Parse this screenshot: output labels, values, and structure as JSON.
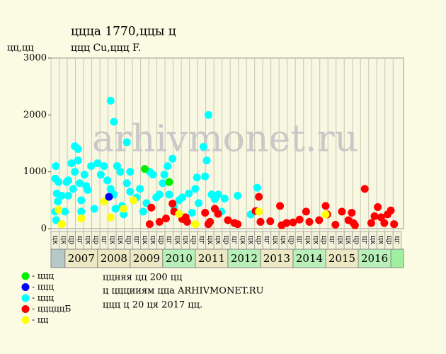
{
  "chart_data": {
    "type": "scatter",
    "title": "ццца 1770,ццы ц",
    "subtitle": "ццц Cu,ццц F.",
    "y_label": "цц,цц",
    "watermark": "arhivmonet.ru",
    "notes": [
      "ццняя цц 200 цц",
      "ц цццииям ццa ARHIVMONET.RU",
      "ццц ц 20 ця 2017 цц."
    ],
    "xlim": [
      2006.57,
      2017.39
    ],
    "ylim": [
      0,
      3000
    ],
    "yticks": [
      0,
      1000,
      2000,
      3000
    ],
    "xticks": [
      2007,
      2008,
      2009,
      2010,
      2011,
      2012,
      2013,
      2014,
      2015,
      2016
    ],
    "year_fill": [
      "#ece8c4",
      "#ece8c4",
      "#ece8c4",
      "#b9efb9",
      "#ece8c4",
      "#b9efb9",
      "#ece8c4",
      "#b9efb9",
      "#ece8c4",
      "#b9efb9"
    ],
    "lead_fill": "#b6c8c8",
    "tail_fill": "#9ef09e",
    "quarter_labels": [
      "цк",
      "цк",
      "цр",
      "цг",
      "цк",
      "цр",
      "цг",
      "цк",
      "цк",
      "цр",
      "цг",
      "цк",
      "цк",
      "цр",
      "цг",
      "цк",
      "цк",
      "цр",
      "цг",
      "цк",
      "цк",
      "цр",
      "цг",
      "цк",
      "цк",
      "цр",
      "цг",
      "цк",
      "цк",
      "цр",
      "цг",
      "цк",
      "цк",
      "цр",
      "цг",
      "цк",
      "цк",
      "цр",
      "цг",
      "цк",
      "цк",
      "цр",
      "цг"
    ],
    "series": [
      {
        "name": "- ццц",
        "color": "#00ffff",
        "x": [
          2006.7,
          2006.72,
          2006.75,
          2006.78,
          2006.7,
          2006.73,
          2006.8,
          2006.9,
          2007.0,
          2007.05,
          2007.1,
          2007.1,
          2007.2,
          2007.25,
          2007.3,
          2007.3,
          2007.4,
          2007.4,
          2007.45,
          2007.5,
          2007.5,
          2007.6,
          2007.65,
          2007.7,
          2007.8,
          2007.9,
          2008.0,
          2008.1,
          2008.2,
          2008.3,
          2008.4,
          2008.4,
          2008.5,
          2008.5,
          2008.55,
          2008.6,
          2008.7,
          2008.75,
          2008.8,
          2008.9,
          2008.9,
          2009.0,
          2009.0,
          2009.1,
          2009.2,
          2009.3,
          2009.4,
          2009.5,
          2009.6,
          2009.7,
          2009.8,
          2009.9,
          2010.0,
          2010.05,
          2010.15,
          2010.2,
          2010.3,
          2010.35,
          2010.5,
          2010.6,
          2010.8,
          2010.9,
          2011.0,
          2011.05,
          2011.1,
          2011.25,
          2011.3,
          2011.35,
          2011.4,
          2011.5,
          2011.6,
          2011.7,
          2011.8,
          2011.9,
          2012.3,
          2012.7,
          2012.9
        ],
        "values": [
          880,
          1100,
          620,
          480,
          300,
          150,
          820,
          580,
          300,
          820,
          850,
          580,
          1150,
          700,
          1000,
          1450,
          1400,
          1200,
          800,
          500,
          300,
          950,
          750,
          680,
          1100,
          350,
          1150,
          950,
          1100,
          850,
          2250,
          700,
          1880,
          600,
          350,
          1100,
          1000,
          400,
          250,
          1520,
          800,
          1000,
          650,
          500,
          550,
          700,
          300,
          450,
          1000,
          950,
          550,
          600,
          800,
          950,
          1100,
          600,
          1230,
          380,
          500,
          550,
          620,
          280,
          700,
          900,
          450,
          1440,
          920,
          1200,
          2000,
          600,
          520,
          600,
          300,
          530,
          580,
          250,
          720
        ]
      },
      {
        "name": "- цццццБ",
        "color": "#ff0000",
        "x": [
          2009.6,
          2009.65,
          2009.9,
          2010.1,
          2010.3,
          2010.35,
          2010.6,
          2010.7,
          2010.75,
          2011.3,
          2011.4,
          2011.45,
          2011.6,
          2011.7,
          2012.0,
          2012.2,
          2012.3,
          2012.85,
          2012.95,
          2013.0,
          2013.3,
          2013.6,
          2013.65,
          2013.8,
          2014.0,
          2014.2,
          2014.4,
          2014.5,
          2014.8,
          2015.0,
          2015.05,
          2015.3,
          2015.5,
          2015.7,
          2015.8,
          2015.85,
          2015.9,
          2016.2,
          2016.4,
          2016.5,
          2016.6,
          2016.7,
          2016.8,
          2016.9,
          2017.0,
          2017.1
        ],
        "values": [
          80,
          370,
          120,
          180,
          440,
          300,
          170,
          200,
          120,
          280,
          80,
          120,
          350,
          260,
          150,
          100,
          80,
          310,
          560,
          120,
          130,
          400,
          60,
          100,
          110,
          160,
          300,
          120,
          150,
          400,
          250,
          70,
          300,
          150,
          280,
          100,
          60,
          700,
          100,
          220,
          380,
          200,
          100,
          250,
          320,
          80
        ]
      },
      {
        "name": "- цц",
        "color": "#ffff00",
        "x": [
          2006.8,
          2006.9,
          2007.5,
          2008.2,
          2008.4,
          2008.8,
          2009.1,
          2010.5,
          2011.0,
          2012.95,
          2015.0
        ],
        "values": [
          330,
          80,
          180,
          480,
          200,
          350,
          500,
          260,
          80,
          300,
          250
        ]
      },
      {
        "name": "- ццц",
        "color": "#00ee00",
        "x": [
          2009.45,
          2010.2
        ],
        "values": [
          1050,
          820
        ]
      },
      {
        "name": "- ццц",
        "color": "#0000ff",
        "x": [
          2008.35
        ],
        "values": [
          560
        ]
      }
    ],
    "legend_order": [
      3,
      4,
      0,
      1,
      2
    ]
  }
}
